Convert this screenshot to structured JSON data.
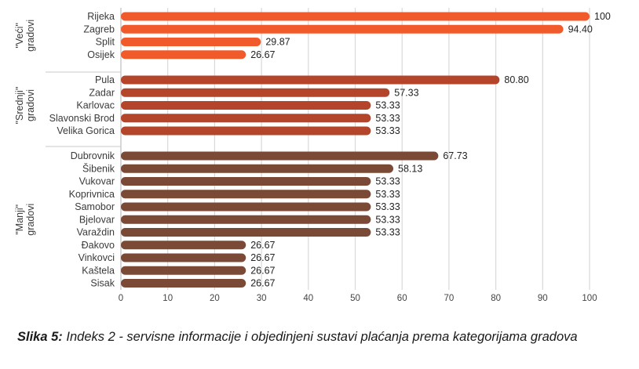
{
  "chart_data": {
    "type": "bar",
    "orientation": "horizontal",
    "xlim": [
      0,
      100
    ],
    "ticks": [
      "0",
      "10",
      "20",
      "30",
      "40",
      "50",
      "60",
      "70",
      "80",
      "90",
      "100"
    ],
    "grid": "vertical",
    "groups": [
      {
        "label": "\"Veći\" gradovi",
        "color": "#f15a2b",
        "categories": [
          "Rijeka",
          "Zagreb",
          "Split",
          "Osijek"
        ],
        "values": [
          100,
          94.4,
          29.87,
          26.67
        ],
        "value_labels": [
          "100",
          "94.40",
          "29.87",
          "26.67"
        ]
      },
      {
        "label": "\"Srednji\" gradovi",
        "color": "#b5452a",
        "categories": [
          "Pula",
          "Zadar",
          "Karlovac",
          "Slavonski Brod",
          "Velika Gorica"
        ],
        "values": [
          80.8,
          57.33,
          53.33,
          53.33,
          53.33
        ],
        "value_labels": [
          "80.80",
          "57.33",
          "53.33",
          "53.33",
          "53.33"
        ]
      },
      {
        "label": "\"Manji\" gradovi",
        "color": "#7b4a37",
        "categories": [
          "Dubrovnik",
          "Šibenik",
          "Vukovar",
          "Koprivnica",
          "Samobor",
          "Bjelovar",
          "Varaždin",
          "Đakovo",
          "Vinkovci",
          "Kaštela",
          "Sisak"
        ],
        "values": [
          67.73,
          58.13,
          53.33,
          53.33,
          53.33,
          53.33,
          53.33,
          26.67,
          26.67,
          26.67,
          26.67
        ],
        "value_labels": [
          "67.73",
          "58.13",
          "53.33",
          "53.33",
          "53.33",
          "53.33",
          "53.33",
          "26.67",
          "26.67",
          "26.67",
          "26.67"
        ]
      }
    ]
  },
  "caption": {
    "bold": "Slika 5:",
    "text": " Indeks 2 - servisne informacije i objedinjeni sustavi plaćanja prema kategorijama gradova"
  }
}
